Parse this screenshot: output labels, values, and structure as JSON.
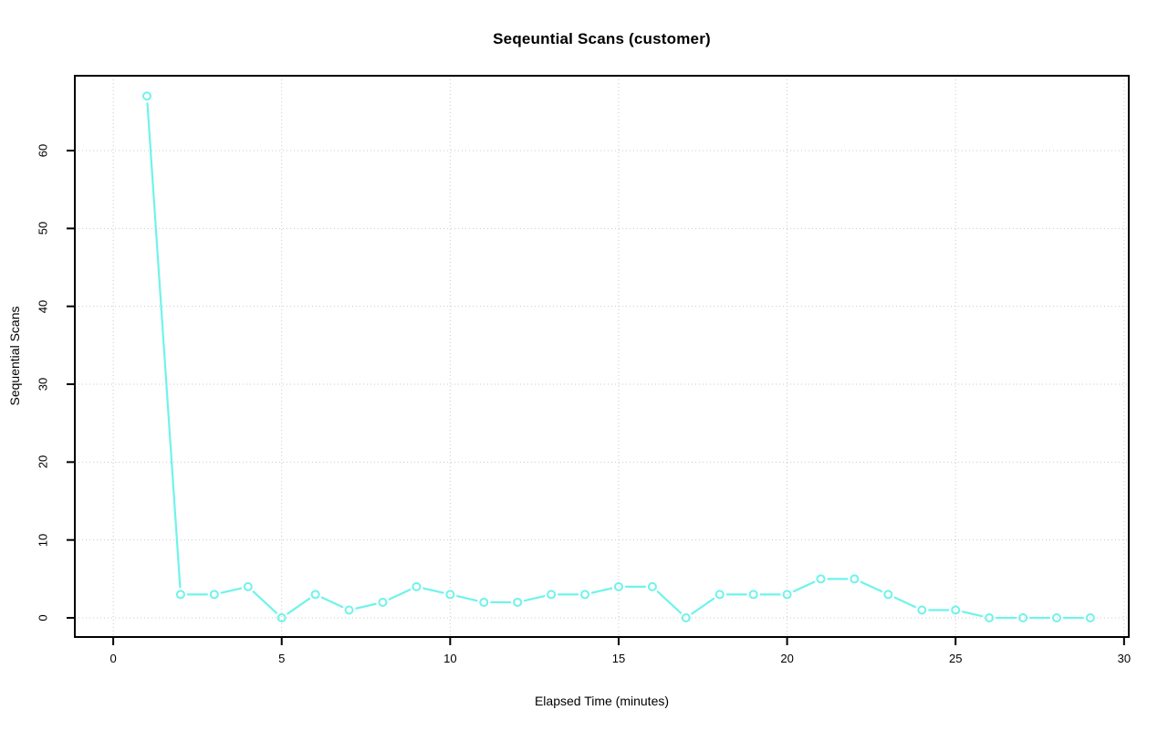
{
  "title": "Seqeuntial Scans (customer)",
  "colors": {
    "line": "#6ff3eb",
    "marker_fill": "#ffffff",
    "grid": "#c9c9c9",
    "box": "#000000",
    "tick": "#000000",
    "text": "#000000",
    "background": "#ffffff"
  },
  "chart_data": {
    "type": "line",
    "title": "Seqeuntial Scans (customer)",
    "xlabel": "Elapsed Time (minutes)",
    "ylabel": "Sequential Scans",
    "x": [
      1,
      2,
      3,
      4,
      5,
      6,
      7,
      8,
      9,
      10,
      11,
      12,
      13,
      14,
      15,
      16,
      17,
      18,
      19,
      20,
      21,
      22,
      23,
      24,
      25,
      26,
      27,
      28,
      29
    ],
    "y": [
      67,
      3,
      3,
      4,
      0,
      3,
      1,
      2,
      4,
      3,
      2,
      2,
      3,
      3,
      4,
      4,
      0,
      3,
      3,
      3,
      5,
      5,
      3,
      1,
      1,
      0,
      0,
      0,
      0
    ],
    "x_ticks": [
      0,
      5,
      10,
      15,
      20,
      25,
      30
    ],
    "y_ticks": [
      0,
      10,
      20,
      30,
      40,
      50,
      60
    ],
    "xlim": [
      -1.14,
      30.14
    ],
    "ylim": [
      -2.46,
      69.61
    ],
    "grid": true,
    "grid_style": "dotted",
    "legend_position": "none",
    "marker": "open-circle",
    "line_style": "segments-with-gaps"
  }
}
